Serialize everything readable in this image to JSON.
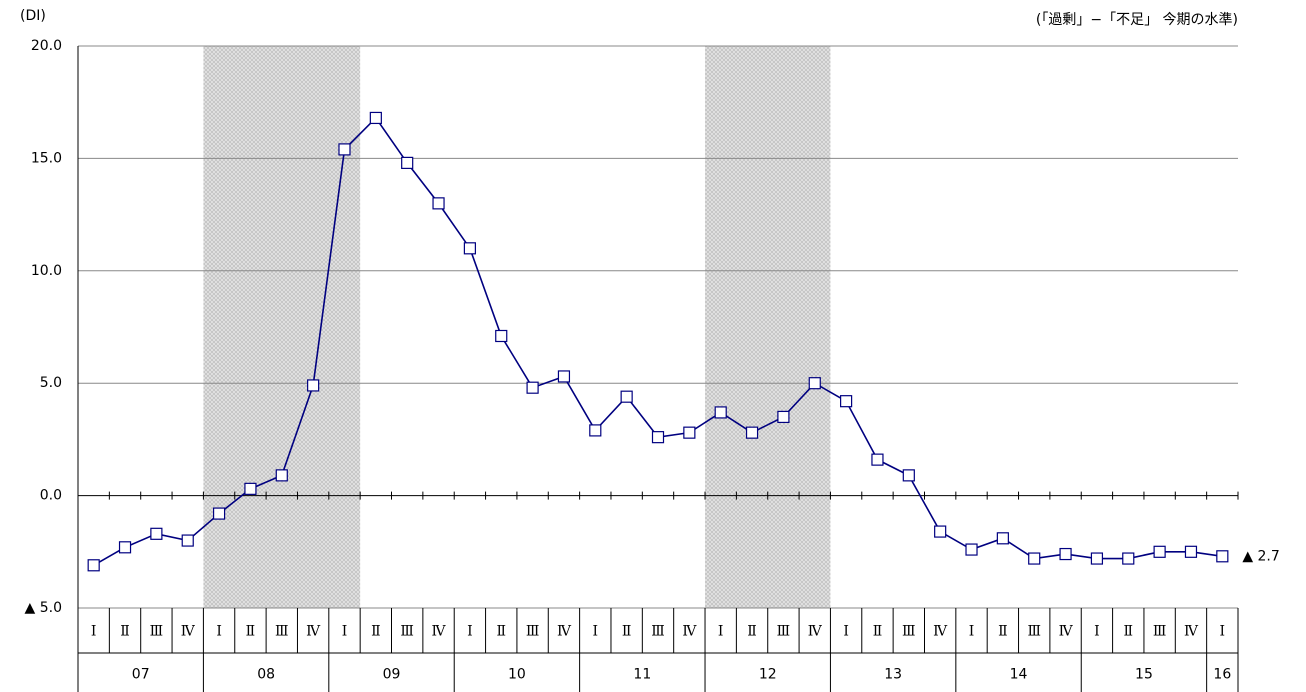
{
  "chart_data": {
    "type": "line",
    "y_unit": "(DI)",
    "subtitle": "(「過剰」−「不足」 今期の水準)",
    "categories": [
      "Ⅰ",
      "Ⅱ",
      "Ⅲ",
      "Ⅳ",
      "Ⅰ",
      "Ⅱ",
      "Ⅲ",
      "Ⅳ",
      "Ⅰ",
      "Ⅱ",
      "Ⅲ",
      "Ⅳ",
      "Ⅰ",
      "Ⅱ",
      "Ⅲ",
      "Ⅳ",
      "Ⅰ",
      "Ⅱ",
      "Ⅲ",
      "Ⅳ",
      "Ⅰ",
      "Ⅱ",
      "Ⅲ",
      "Ⅳ",
      "Ⅰ",
      "Ⅱ",
      "Ⅲ",
      "Ⅳ",
      "Ⅰ",
      "Ⅱ",
      "Ⅲ",
      "Ⅳ",
      "Ⅰ",
      "Ⅱ",
      "Ⅲ",
      "Ⅳ",
      "Ⅰ"
    ],
    "years": [
      "07",
      "08",
      "09",
      "10",
      "11",
      "12",
      "13",
      "14",
      "15",
      "16"
    ],
    "values": [
      -3.1,
      -2.3,
      -1.7,
      -2.0,
      -0.8,
      0.3,
      0.9,
      4.9,
      15.4,
      16.8,
      14.8,
      13.0,
      11.0,
      7.1,
      4.8,
      5.3,
      2.9,
      4.4,
      2.6,
      2.8,
      3.7,
      2.8,
      3.5,
      5.0,
      4.2,
      1.6,
      0.9,
      -1.6,
      -2.4,
      -1.9,
      -2.8,
      -2.6,
      -2.8,
      -2.8,
      -2.5,
      -2.5,
      -2.7
    ],
    "value_labels": [
      null,
      null,
      null,
      null,
      null,
      null,
      null,
      null,
      null,
      null,
      null,
      null,
      null,
      null,
      null,
      null,
      null,
      null,
      null,
      null,
      null,
      null,
      null,
      null,
      null,
      null,
      null,
      null,
      null,
      null,
      null,
      null,
      null,
      null,
      null,
      null,
      "▲ 2.7"
    ],
    "color": "#000080",
    "shaded": [
      [
        4,
        8
      ],
      [
        20,
        23
      ]
    ],
    "ylim": [
      -5,
      20
    ],
    "yticks": [
      {
        "value": -5,
        "label": "▲ 5.0"
      },
      {
        "value": 0,
        "label": "0.0"
      },
      {
        "value": 5,
        "label": "5.0"
      },
      {
        "value": 10,
        "label": "10.0"
      },
      {
        "value": 15,
        "label": "15.0"
      },
      {
        "value": 20,
        "label": "20.0"
      }
    ],
    "grid": true
  }
}
